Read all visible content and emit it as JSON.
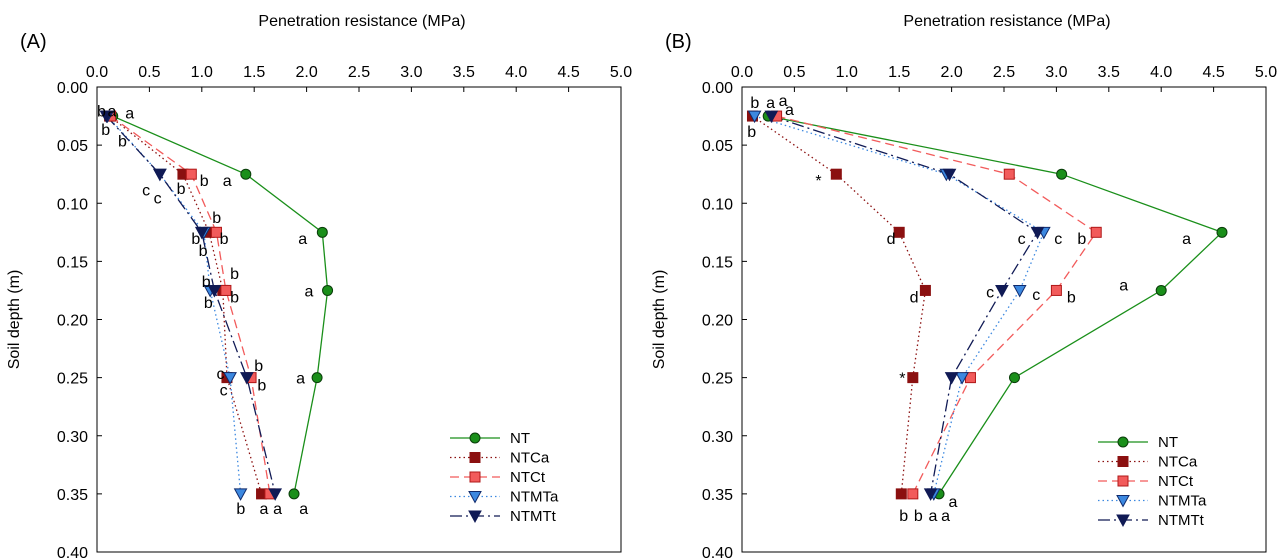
{
  "colors": {
    "NT": "#1a8f1a",
    "NT_stroke": "#0a3d0a",
    "NTCa": "#8b1010",
    "NTCt": "#f25b5b",
    "NTCt_stroke": "#b01818",
    "NTMTa": "#3c88e0",
    "NTMTa_stroke": "#102a6b",
    "NTMTt": "#101a55"
  },
  "chart_data": [
    {
      "type": "line",
      "panel_label": "(A)",
      "xlabel": "Penetration resistance (MPa)",
      "ylabel": "Soil depth (m)",
      "xlim": [
        0,
        5
      ],
      "ylim": [
        0.4,
        0
      ],
      "xticks": [
        "0.0",
        "0.5",
        "1.0",
        "1.5",
        "2.0",
        "2.5",
        "3.0",
        "3.5",
        "4.0",
        "4.5",
        "5.0"
      ],
      "yticks": [
        "0.00",
        "0.05",
        "0.10",
        "0.15",
        "0.20",
        "0.25",
        "0.30",
        "0.35",
        "0.40"
      ],
      "legend_position": "bottom-right",
      "depths": [
        0.025,
        0.075,
        0.125,
        0.175,
        0.25,
        0.35
      ],
      "series": [
        {
          "name": "NT",
          "x": [
            0.15,
            1.42,
            2.15,
            2.2,
            2.1,
            1.88
          ],
          "marker": "circle",
          "dash": "solid"
        },
        {
          "name": "NTCa",
          "x": [
            0.12,
            0.82,
            1.07,
            1.2,
            1.24,
            1.57
          ],
          "marker": "square",
          "dash": "dotted"
        },
        {
          "name": "NTCt",
          "x": [
            0.13,
            0.9,
            1.14,
            1.23,
            1.47,
            1.65
          ],
          "marker": "square",
          "dash": "dashed"
        },
        {
          "name": "NTMTa",
          "x": [
            0.1,
            0.6,
            1.02,
            1.08,
            1.27,
            1.37
          ],
          "marker": "triangle-down",
          "dash": "dotted"
        },
        {
          "name": "NTMTt",
          "x": [
            0.09,
            0.6,
            1.0,
            1.12,
            1.43,
            1.7
          ],
          "marker": "triangle-down",
          "dash": "dashdot"
        }
      ],
      "annotations": [
        {
          "text": "b",
          "x": 0.0,
          "y": 0.02
        },
        {
          "text": "a",
          "x": 0.1,
          "y": 0.02
        },
        {
          "text": "a",
          "x": 0.27,
          "y": 0.022
        },
        {
          "text": "b",
          "x": 0.04,
          "y": 0.036
        },
        {
          "text": "b",
          "x": 0.2,
          "y": 0.046
        },
        {
          "text": "a",
          "x": 1.2,
          "y": 0.08
        },
        {
          "text": "b",
          "x": 0.98,
          "y": 0.08
        },
        {
          "text": "b",
          "x": 0.76,
          "y": 0.087
        },
        {
          "text": "c",
          "x": 0.43,
          "y": 0.088
        },
        {
          "text": "c",
          "x": 0.54,
          "y": 0.095
        },
        {
          "text": "a",
          "x": 1.92,
          "y": 0.13
        },
        {
          "text": "b",
          "x": 1.1,
          "y": 0.112
        },
        {
          "text": "b",
          "x": 0.9,
          "y": 0.13
        },
        {
          "text": "b",
          "x": 0.97,
          "y": 0.14
        },
        {
          "text": "b",
          "x": 1.17,
          "y": 0.13
        },
        {
          "text": "a",
          "x": 1.98,
          "y": 0.175
        },
        {
          "text": "b",
          "x": 1.27,
          "y": 0.16
        },
        {
          "text": "b",
          "x": 1.0,
          "y": 0.167
        },
        {
          "text": "b",
          "x": 1.27,
          "y": 0.18
        },
        {
          "text": "b",
          "x": 1.02,
          "y": 0.185
        },
        {
          "text": "a",
          "x": 1.9,
          "y": 0.25
        },
        {
          "text": "b",
          "x": 1.5,
          "y": 0.239
        },
        {
          "text": "c",
          "x": 1.14,
          "y": 0.246
        },
        {
          "text": "b",
          "x": 1.53,
          "y": 0.256
        },
        {
          "text": "c",
          "x": 1.17,
          "y": 0.26
        },
        {
          "text": "b",
          "x": 1.33,
          "y": 0.362
        },
        {
          "text": "a",
          "x": 1.55,
          "y": 0.362
        },
        {
          "text": "a",
          "x": 1.68,
          "y": 0.362
        },
        {
          "text": "a",
          "x": 1.93,
          "y": 0.362
        }
      ]
    },
    {
      "type": "line",
      "panel_label": "(B)",
      "xlabel": "Penetration resistance (MPa)",
      "ylabel": "Soil depth (m)",
      "xlim": [
        0,
        5
      ],
      "ylim": [
        0.4,
        0
      ],
      "xticks": [
        "0.0",
        "0.5",
        "1.0",
        "1.5",
        "2.0",
        "2.5",
        "3.0",
        "3.5",
        "4.0",
        "4.5",
        "5.0"
      ],
      "yticks": [
        "0.00",
        "0.05",
        "0.10",
        "0.15",
        "0.20",
        "0.25",
        "0.30",
        "0.35",
        "0.40"
      ],
      "legend_position": "bottom-right",
      "depths": [
        0.025,
        0.075,
        0.125,
        0.175,
        0.25,
        0.35
      ],
      "series": [
        {
          "name": "NT",
          "x": [
            0.25,
            3.05,
            4.58,
            4.0,
            2.6,
            1.88
          ],
          "marker": "circle",
          "dash": "solid"
        },
        {
          "name": "NTCa",
          "x": [
            0.1,
            0.9,
            1.5,
            1.75,
            1.63,
            1.52
          ],
          "marker": "square",
          "dash": "dotted"
        },
        {
          "name": "NTCt",
          "x": [
            0.33,
            2.55,
            3.38,
            3.0,
            2.18,
            1.63
          ],
          "marker": "square",
          "dash": "dashed"
        },
        {
          "name": "NTMTa",
          "x": [
            0.12,
            1.95,
            2.88,
            2.65,
            2.1,
            1.83
          ],
          "marker": "triangle-down",
          "dash": "dotted"
        },
        {
          "name": "NTMTt",
          "x": [
            0.28,
            1.98,
            2.82,
            2.48,
            2.0,
            1.8
          ],
          "marker": "triangle-down",
          "dash": "dashdot"
        }
      ],
      "annotations": [
        {
          "text": "b",
          "x": 0.08,
          "y": 0.013
        },
        {
          "text": "a",
          "x": 0.23,
          "y": 0.013
        },
        {
          "text": "a",
          "x": 0.35,
          "y": 0.011
        },
        {
          "text": "a",
          "x": 0.41,
          "y": 0.019
        },
        {
          "text": "b",
          "x": 0.05,
          "y": 0.038
        },
        {
          "text": "*",
          "x": 0.7,
          "y": 0.08
        },
        {
          "text": "a",
          "x": 4.2,
          "y": 0.13
        },
        {
          "text": "b",
          "x": 3.2,
          "y": 0.13
        },
        {
          "text": "c",
          "x": 2.98,
          "y": 0.13
        },
        {
          "text": "c",
          "x": 2.63,
          "y": 0.13
        },
        {
          "text": "d",
          "x": 1.38,
          "y": 0.13
        },
        {
          "text": "a",
          "x": 3.6,
          "y": 0.17
        },
        {
          "text": "b",
          "x": 3.1,
          "y": 0.18
        },
        {
          "text": "c",
          "x": 2.77,
          "y": 0.178
        },
        {
          "text": "c",
          "x": 2.33,
          "y": 0.176
        },
        {
          "text": "d",
          "x": 1.6,
          "y": 0.18
        },
        {
          "text": "*",
          "x": 1.5,
          "y": 0.25
        },
        {
          "text": "a",
          "x": 1.97,
          "y": 0.356
        },
        {
          "text": "b",
          "x": 1.5,
          "y": 0.368
        },
        {
          "text": "b",
          "x": 1.64,
          "y": 0.368
        },
        {
          "text": "a",
          "x": 1.78,
          "y": 0.368
        },
        {
          "text": "a",
          "x": 1.9,
          "y": 0.368
        }
      ]
    }
  ]
}
